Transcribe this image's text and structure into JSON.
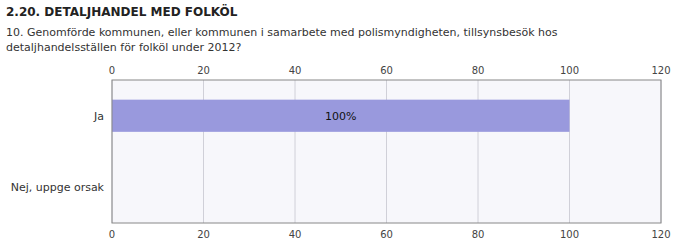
{
  "chart_data": {
    "type": "bar",
    "orientation": "horizontal",
    "title": "2.20. DETALJHANDEL MED FOLKÖL",
    "subtitle": "10. Genomförde kommunen, eller kommunen i samarbete med polismyndigheten, tillsynsbesök hos\ndetaljhandelsställen för folköl under 2012?",
    "categories": [
      "Ja",
      "Nej, uppge orsak"
    ],
    "values": [
      100,
      0
    ],
    "value_labels": [
      "100%",
      null
    ],
    "data_labels": true,
    "color": "#9999dd",
    "xlim": [
      0,
      120
    ],
    "xticks": [
      0,
      20,
      40,
      60,
      80,
      100,
      120
    ],
    "grid": true
  }
}
